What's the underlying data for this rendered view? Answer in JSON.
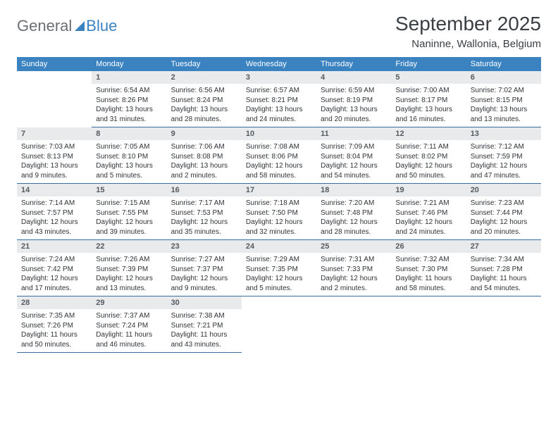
{
  "logo": {
    "part1": "General",
    "part2": "Blue"
  },
  "title": "September 2025",
  "location": "Naninne, Wallonia, Belgium",
  "colors": {
    "header_bar": "#3b83c0",
    "band": "#e9eaeb",
    "rule": "#3b6ea0",
    "text": "#2f3437",
    "muted": "#6b6f73"
  },
  "fonts": {
    "title_size": 28,
    "location_size": 15,
    "dow_size": 11,
    "daynum_size": 11,
    "body_size": 10
  },
  "dow": [
    "Sunday",
    "Monday",
    "Tuesday",
    "Wednesday",
    "Thursday",
    "Friday",
    "Saturday"
  ],
  "weeks": [
    [
      {
        "n": "",
        "sr": "",
        "ss": "",
        "dl": ""
      },
      {
        "n": "1",
        "sr": "Sunrise: 6:54 AM",
        "ss": "Sunset: 8:26 PM",
        "dl": "Daylight: 13 hours and 31 minutes."
      },
      {
        "n": "2",
        "sr": "Sunrise: 6:56 AM",
        "ss": "Sunset: 8:24 PM",
        "dl": "Daylight: 13 hours and 28 minutes."
      },
      {
        "n": "3",
        "sr": "Sunrise: 6:57 AM",
        "ss": "Sunset: 8:21 PM",
        "dl": "Daylight: 13 hours and 24 minutes."
      },
      {
        "n": "4",
        "sr": "Sunrise: 6:59 AM",
        "ss": "Sunset: 8:19 PM",
        "dl": "Daylight: 13 hours and 20 minutes."
      },
      {
        "n": "5",
        "sr": "Sunrise: 7:00 AM",
        "ss": "Sunset: 8:17 PM",
        "dl": "Daylight: 13 hours and 16 minutes."
      },
      {
        "n": "6",
        "sr": "Sunrise: 7:02 AM",
        "ss": "Sunset: 8:15 PM",
        "dl": "Daylight: 13 hours and 13 minutes."
      }
    ],
    [
      {
        "n": "7",
        "sr": "Sunrise: 7:03 AM",
        "ss": "Sunset: 8:13 PM",
        "dl": "Daylight: 13 hours and 9 minutes."
      },
      {
        "n": "8",
        "sr": "Sunrise: 7:05 AM",
        "ss": "Sunset: 8:10 PM",
        "dl": "Daylight: 13 hours and 5 minutes."
      },
      {
        "n": "9",
        "sr": "Sunrise: 7:06 AM",
        "ss": "Sunset: 8:08 PM",
        "dl": "Daylight: 13 hours and 2 minutes."
      },
      {
        "n": "10",
        "sr": "Sunrise: 7:08 AM",
        "ss": "Sunset: 8:06 PM",
        "dl": "Daylight: 12 hours and 58 minutes."
      },
      {
        "n": "11",
        "sr": "Sunrise: 7:09 AM",
        "ss": "Sunset: 8:04 PM",
        "dl": "Daylight: 12 hours and 54 minutes."
      },
      {
        "n": "12",
        "sr": "Sunrise: 7:11 AM",
        "ss": "Sunset: 8:02 PM",
        "dl": "Daylight: 12 hours and 50 minutes."
      },
      {
        "n": "13",
        "sr": "Sunrise: 7:12 AM",
        "ss": "Sunset: 7:59 PM",
        "dl": "Daylight: 12 hours and 47 minutes."
      }
    ],
    [
      {
        "n": "14",
        "sr": "Sunrise: 7:14 AM",
        "ss": "Sunset: 7:57 PM",
        "dl": "Daylight: 12 hours and 43 minutes."
      },
      {
        "n": "15",
        "sr": "Sunrise: 7:15 AM",
        "ss": "Sunset: 7:55 PM",
        "dl": "Daylight: 12 hours and 39 minutes."
      },
      {
        "n": "16",
        "sr": "Sunrise: 7:17 AM",
        "ss": "Sunset: 7:53 PM",
        "dl": "Daylight: 12 hours and 35 minutes."
      },
      {
        "n": "17",
        "sr": "Sunrise: 7:18 AM",
        "ss": "Sunset: 7:50 PM",
        "dl": "Daylight: 12 hours and 32 minutes."
      },
      {
        "n": "18",
        "sr": "Sunrise: 7:20 AM",
        "ss": "Sunset: 7:48 PM",
        "dl": "Daylight: 12 hours and 28 minutes."
      },
      {
        "n": "19",
        "sr": "Sunrise: 7:21 AM",
        "ss": "Sunset: 7:46 PM",
        "dl": "Daylight: 12 hours and 24 minutes."
      },
      {
        "n": "20",
        "sr": "Sunrise: 7:23 AM",
        "ss": "Sunset: 7:44 PM",
        "dl": "Daylight: 12 hours and 20 minutes."
      }
    ],
    [
      {
        "n": "21",
        "sr": "Sunrise: 7:24 AM",
        "ss": "Sunset: 7:42 PM",
        "dl": "Daylight: 12 hours and 17 minutes."
      },
      {
        "n": "22",
        "sr": "Sunrise: 7:26 AM",
        "ss": "Sunset: 7:39 PM",
        "dl": "Daylight: 12 hours and 13 minutes."
      },
      {
        "n": "23",
        "sr": "Sunrise: 7:27 AM",
        "ss": "Sunset: 7:37 PM",
        "dl": "Daylight: 12 hours and 9 minutes."
      },
      {
        "n": "24",
        "sr": "Sunrise: 7:29 AM",
        "ss": "Sunset: 7:35 PM",
        "dl": "Daylight: 12 hours and 5 minutes."
      },
      {
        "n": "25",
        "sr": "Sunrise: 7:31 AM",
        "ss": "Sunset: 7:33 PM",
        "dl": "Daylight: 12 hours and 2 minutes."
      },
      {
        "n": "26",
        "sr": "Sunrise: 7:32 AM",
        "ss": "Sunset: 7:30 PM",
        "dl": "Daylight: 11 hours and 58 minutes."
      },
      {
        "n": "27",
        "sr": "Sunrise: 7:34 AM",
        "ss": "Sunset: 7:28 PM",
        "dl": "Daylight: 11 hours and 54 minutes."
      }
    ],
    [
      {
        "n": "28",
        "sr": "Sunrise: 7:35 AM",
        "ss": "Sunset: 7:26 PM",
        "dl": "Daylight: 11 hours and 50 minutes."
      },
      {
        "n": "29",
        "sr": "Sunrise: 7:37 AM",
        "ss": "Sunset: 7:24 PM",
        "dl": "Daylight: 11 hours and 46 minutes."
      },
      {
        "n": "30",
        "sr": "Sunrise: 7:38 AM",
        "ss": "Sunset: 7:21 PM",
        "dl": "Daylight: 11 hours and 43 minutes."
      },
      {
        "n": "",
        "sr": "",
        "ss": "",
        "dl": ""
      },
      {
        "n": "",
        "sr": "",
        "ss": "",
        "dl": ""
      },
      {
        "n": "",
        "sr": "",
        "ss": "",
        "dl": ""
      },
      {
        "n": "",
        "sr": "",
        "ss": "",
        "dl": ""
      }
    ]
  ]
}
